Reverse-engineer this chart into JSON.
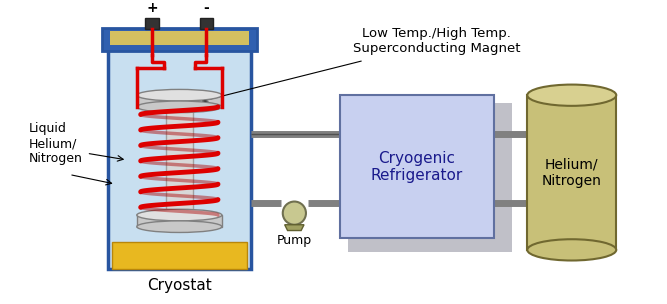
{
  "bg_color": "#ffffff",
  "cryostat_label": "Cryostat",
  "pump_label": "Pump",
  "refrigerator_label": "Cryogenic\nRefrigerator",
  "helium_label": "Helium/\nNitrogen",
  "liquid_label": "Liquid\nHelium/\nNitrogen",
  "magnet_label": "Low Temp./High Temp.\nSuperconducting Magnet",
  "plus_label": "+",
  "minus_label": "-",
  "cryostat_body_color": "#c8dff0",
  "cryostat_border_color": "#2855a0",
  "cryostat_top_color": "#3060b0",
  "cryostat_top_gold": "#d4c060",
  "coil_color": "#dd0000",
  "coil_back_color": "#aa0000",
  "refrigerator_color": "#c8d0f0",
  "refrigerator_border": "#6070a0",
  "refrigerator_shadow": "#c0c0c8",
  "helium_tank_color": "#c8c078",
  "helium_tank_top": "#d8d090",
  "helium_tank_border": "#706830",
  "bottom_color": "#e8b820",
  "pipe_color": "#808080",
  "pipe_border": "#505050",
  "pump_color": "#b8b870",
  "pump_border": "#606030",
  "terminal_color": "#303030",
  "wire_color": "#dd0000",
  "core_color": "#d0d0d0",
  "core_border": "#909090",
  "plate_color": "#c8c8c8",
  "plate_border": "#808080",
  "label_color": "#1a1a8c"
}
